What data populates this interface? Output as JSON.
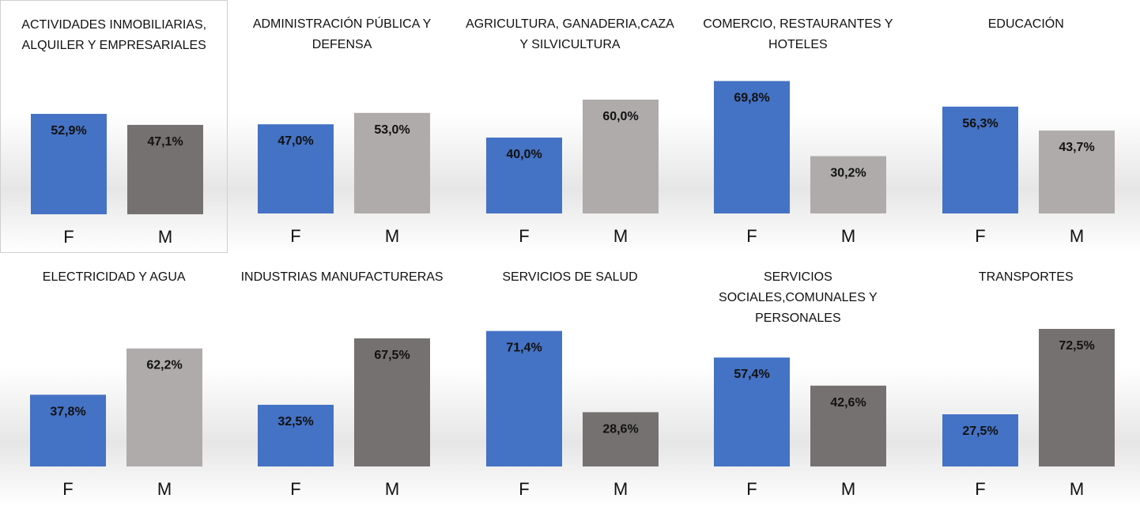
{
  "chart_data": [
    {
      "type": "bar",
      "title": "ACTIVIDADES INMOBILIARIAS, ALQUILER Y EMPRESARIALES",
      "categories": [
        "F",
        "M"
      ],
      "values": [
        52.9,
        47.1
      ],
      "value_labels": [
        "52,9%",
        "47,1%"
      ],
      "colors": [
        "#4472c4",
        "#767171"
      ]
    },
    {
      "type": "bar",
      "title": "ADMINISTRACIÓN PÚBLICA Y DEFENSA",
      "categories": [
        "F",
        "M"
      ],
      "values": [
        47.0,
        53.0
      ],
      "value_labels": [
        "47,0%",
        "53,0%"
      ],
      "colors": [
        "#4472c4",
        "#afabab"
      ]
    },
    {
      "type": "bar",
      "title": "AGRICULTURA, GANADERIA,CAZA Y SILVICULTURA",
      "categories": [
        "F",
        "M"
      ],
      "values": [
        40.0,
        60.0
      ],
      "value_labels": [
        "40,0%",
        "60,0%"
      ],
      "colors": [
        "#4472c4",
        "#afabab"
      ]
    },
    {
      "type": "bar",
      "title": "COMERCIO, RESTAURANTES Y HOTELES",
      "categories": [
        "F",
        "M"
      ],
      "values": [
        69.8,
        30.2
      ],
      "value_labels": [
        "69,8%",
        "30,2%"
      ],
      "colors": [
        "#4472c4",
        "#afabab"
      ]
    },
    {
      "type": "bar",
      "title": "EDUCACIÓN",
      "categories": [
        "F",
        "M"
      ],
      "values": [
        56.3,
        43.7
      ],
      "value_labels": [
        "56,3%",
        "43,7%"
      ],
      "colors": [
        "#4472c4",
        "#afabab"
      ]
    },
    {
      "type": "bar",
      "title": "ELECTRICIDAD Y AGUA",
      "categories": [
        "F",
        "M"
      ],
      "values": [
        37.8,
        62.2
      ],
      "value_labels": [
        "37,8%",
        "62,2%"
      ],
      "colors": [
        "#4472c4",
        "#afabab"
      ]
    },
    {
      "type": "bar",
      "title": "INDUSTRIAS MANUFACTURERAS",
      "categories": [
        "F",
        "M"
      ],
      "values": [
        32.5,
        67.5
      ],
      "value_labels": [
        "32,5%",
        "67,5%"
      ],
      "colors": [
        "#4472c4",
        "#767171"
      ]
    },
    {
      "type": "bar",
      "title": "SERVICIOS DE SALUD",
      "categories": [
        "F",
        "M"
      ],
      "values": [
        71.4,
        28.6
      ],
      "value_labels": [
        "71,4%",
        "28,6%"
      ],
      "colors": [
        "#4472c4",
        "#767171"
      ]
    },
    {
      "type": "bar",
      "title": "SERVICIOS SOCIALES,COMUNALES Y PERSONALES",
      "categories": [
        "F",
        "M"
      ],
      "values": [
        57.4,
        42.6
      ],
      "value_labels": [
        "57,4%",
        "42,6%"
      ],
      "colors": [
        "#4472c4",
        "#767171"
      ]
    },
    {
      "type": "bar",
      "title": "TRANSPORTES",
      "categories": [
        "F",
        "M"
      ],
      "values": [
        27.5,
        72.5
      ],
      "value_labels": [
        "27,5%",
        "72,5%"
      ],
      "colors": [
        "#4472c4",
        "#767171"
      ]
    }
  ]
}
